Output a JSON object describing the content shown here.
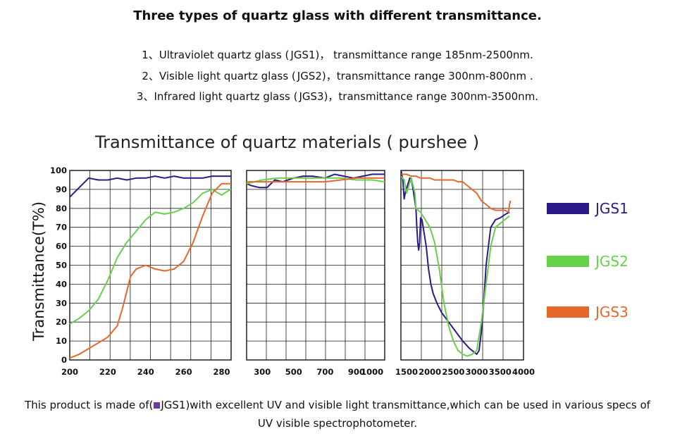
{
  "heading": "Three types of quartz glass with different transmittance.",
  "lines": [
    {
      "pre": "1、Ultraviolet quartz glass (",
      "mid": "JGS1)，  transmittance range 185nm-2500nm.",
      "color": "#6a3d9a"
    },
    {
      "pre": "2、Visible light quartz glass (",
      "mid": "JGS2)，transmittance range 300nm-800nm .",
      "color": "#5cc02e"
    },
    {
      "pre": "3、Infrared light quartz glass (",
      "mid": "JGS3)，transmittance range 300nm-3500nm.",
      "color": "#d9481e"
    }
  ],
  "footer": {
    "pre": "This product is made of(",
    "mid": "JGS1)with excellent UV and visible light transmittance,which can be used in various specs of UV visible spectrophotometer.",
    "color": "#6a3d9a"
  },
  "chart_data": {
    "type": "line",
    "title": "Transmittance of quartz materials ( purshee )",
    "ylabel": "Transmittance(T%)",
    "xlabel": "",
    "ylim": [
      0,
      100
    ],
    "yticks": [
      "0",
      "10",
      "20",
      "30",
      "40",
      "50",
      "60",
      "70",
      "80",
      "90",
      "100"
    ],
    "grid": true,
    "legend_position": "right",
    "colors": {
      "JGS1": "#2b1b88",
      "JGS2": "#66d14a",
      "JGS3": "#e8662a"
    },
    "panels": [
      {
        "xlim": [
          200,
          285
        ],
        "xticks": [
          200,
          220,
          240,
          260,
          280
        ],
        "series": [
          {
            "name": "JGS1",
            "points": [
              [
                200,
                86
              ],
              [
                205,
                91
              ],
              [
                210,
                96
              ],
              [
                215,
                95
              ],
              [
                220,
                95
              ],
              [
                225,
                96
              ],
              [
                230,
                95
              ],
              [
                235,
                96
              ],
              [
                240,
                96
              ],
              [
                245,
                97
              ],
              [
                250,
                96
              ],
              [
                255,
                97
              ],
              [
                260,
                96
              ],
              [
                265,
                96
              ],
              [
                270,
                96
              ],
              [
                275,
                97
              ],
              [
                280,
                97
              ],
              [
                285,
                97
              ]
            ]
          },
          {
            "name": "JGS2",
            "points": [
              [
                200,
                19
              ],
              [
                205,
                22
              ],
              [
                210,
                26
              ],
              [
                215,
                32
              ],
              [
                220,
                42
              ],
              [
                225,
                54
              ],
              [
                230,
                62
              ],
              [
                235,
                68
              ],
              [
                240,
                74
              ],
              [
                245,
                78
              ],
              [
                250,
                77
              ],
              [
                255,
                78
              ],
              [
                260,
                80
              ],
              [
                265,
                83
              ],
              [
                270,
                88
              ],
              [
                275,
                90
              ],
              [
                280,
                87
              ],
              [
                283,
                89
              ],
              [
                285,
                90
              ]
            ]
          },
          {
            "name": "JGS3",
            "points": [
              [
                200,
                1
              ],
              [
                205,
                3
              ],
              [
                210,
                6
              ],
              [
                215,
                9
              ],
              [
                220,
                12
              ],
              [
                225,
                18
              ],
              [
                228,
                28
              ],
              [
                232,
                44
              ],
              [
                235,
                48
              ],
              [
                240,
                50
              ],
              [
                245,
                48
              ],
              [
                250,
                47
              ],
              [
                255,
                48
              ],
              [
                260,
                52
              ],
              [
                265,
                62
              ],
              [
                270,
                76
              ],
              [
                275,
                88
              ],
              [
                280,
                93
              ],
              [
                285,
                93
              ]
            ]
          }
        ]
      },
      {
        "xlim": [
          200,
          1080
        ],
        "xticks": [
          300,
          500,
          700,
          900,
          1000
        ],
        "series": [
          {
            "name": "JGS1",
            "points": [
              [
                200,
                93
              ],
              [
                230,
                92
              ],
              [
                280,
                91
              ],
              [
                330,
                91
              ],
              [
                380,
                95
              ],
              [
                430,
                94
              ],
              [
                500,
                96
              ],
              [
                560,
                97
              ],
              [
                620,
                97
              ],
              [
                700,
                96
              ],
              [
                760,
                98
              ],
              [
                820,
                97
              ],
              [
                880,
                96
              ],
              [
                940,
                97
              ],
              [
                1000,
                98
              ],
              [
                1080,
                98
              ]
            ]
          },
          {
            "name": "JGS2",
            "points": [
              [
                200,
                93
              ],
              [
                250,
                94
              ],
              [
                300,
                95
              ],
              [
                400,
                96
              ],
              [
                500,
                96
              ],
              [
                600,
                96
              ],
              [
                700,
                96
              ],
              [
                800,
                96
              ],
              [
                900,
                95
              ],
              [
                1000,
                95
              ],
              [
                1080,
                94
              ]
            ]
          },
          {
            "name": "JGS3",
            "points": [
              [
                200,
                94
              ],
              [
                250,
                94
              ],
              [
                300,
                94
              ],
              [
                400,
                94
              ],
              [
                500,
                94
              ],
              [
                600,
                94
              ],
              [
                700,
                94
              ],
              [
                800,
                95
              ],
              [
                900,
                96
              ],
              [
                1000,
                96
              ],
              [
                1080,
                96
              ]
            ]
          }
        ]
      },
      {
        "xlim": [
          1380,
          4000
        ],
        "xticks": [
          1500,
          2000,
          2500,
          3000,
          3500,
          4000
        ],
        "series": [
          {
            "name": "JGS1",
            "points": [
              [
                1385,
                100
              ],
              [
                1420,
                95
              ],
              [
                1450,
                85
              ],
              [
                1480,
                89
              ],
              [
                1520,
                92
              ],
              [
                1570,
                96
              ],
              [
                1600,
                96
              ],
              [
                1640,
                90
              ],
              [
                1700,
                80
              ],
              [
                1720,
                70
              ],
              [
                1740,
                62
              ],
              [
                1760,
                58
              ],
              [
                1780,
                62
              ],
              [
                1800,
                75
              ],
              [
                1830,
                74
              ],
              [
                1870,
                68
              ],
              [
                1920,
                60
              ],
              [
                1970,
                48
              ],
              [
                2020,
                40
              ],
              [
                2070,
                35
              ],
              [
                2150,
                30
              ],
              [
                2250,
                25
              ],
              [
                2400,
                20
              ],
              [
                2550,
                15
              ],
              [
                2700,
                10
              ],
              [
                2850,
                6
              ],
              [
                2950,
                4
              ],
              [
                3000,
                3
              ],
              [
                3050,
                5
              ],
              [
                3100,
                15
              ],
              [
                3150,
                30
              ],
              [
                3200,
                50
              ],
              [
                3250,
                60
              ],
              [
                3300,
                70
              ],
              [
                3400,
                74
              ],
              [
                3500,
                75
              ],
              [
                3620,
                77
              ],
              [
                3700,
                78
              ]
            ]
          },
          {
            "name": "JGS2",
            "points": [
              [
                1385,
                97
              ],
              [
                1450,
                95
              ],
              [
                1500,
                88
              ],
              [
                1550,
                92
              ],
              [
                1600,
                96
              ],
              [
                1680,
                88
              ],
              [
                1700,
                80
              ],
              [
                1800,
                78
              ],
              [
                1900,
                74
              ],
              [
                2000,
                70
              ],
              [
                2100,
                62
              ],
              [
                2200,
                48
              ],
              [
                2300,
                30
              ],
              [
                2400,
                18
              ],
              [
                2500,
                10
              ],
              [
                2600,
                5
              ],
              [
                2700,
                3
              ],
              [
                2800,
                2
              ],
              [
                2900,
                3
              ],
              [
                3000,
                5
              ],
              [
                3100,
                20
              ],
              [
                3200,
                40
              ],
              [
                3300,
                60
              ],
              [
                3400,
                70
              ],
              [
                3500,
                72
              ],
              [
                3600,
                74
              ],
              [
                3700,
                76
              ]
            ]
          },
          {
            "name": "JGS3",
            "points": [
              [
                1385,
                98
              ],
              [
                1500,
                98
              ],
              [
                1600,
                97
              ],
              [
                1700,
                97
              ],
              [
                1800,
                96
              ],
              [
                1900,
                96
              ],
              [
                2000,
                96
              ],
              [
                2100,
                95
              ],
              [
                2200,
                95
              ],
              [
                2300,
                95
              ],
              [
                2400,
                95
              ],
              [
                2500,
                95
              ],
              [
                2600,
                94
              ],
              [
                2700,
                94
              ],
              [
                2800,
                92
              ],
              [
                2900,
                90
              ],
              [
                3000,
                88
              ],
              [
                3100,
                84
              ],
              [
                3200,
                82
              ],
              [
                3300,
                80
              ],
              [
                3400,
                79
              ],
              [
                3500,
                79
              ],
              [
                3600,
                79
              ],
              [
                3680,
                78
              ],
              [
                3700,
                82
              ],
              [
                3720,
                84
              ]
            ]
          }
        ]
      }
    ]
  }
}
